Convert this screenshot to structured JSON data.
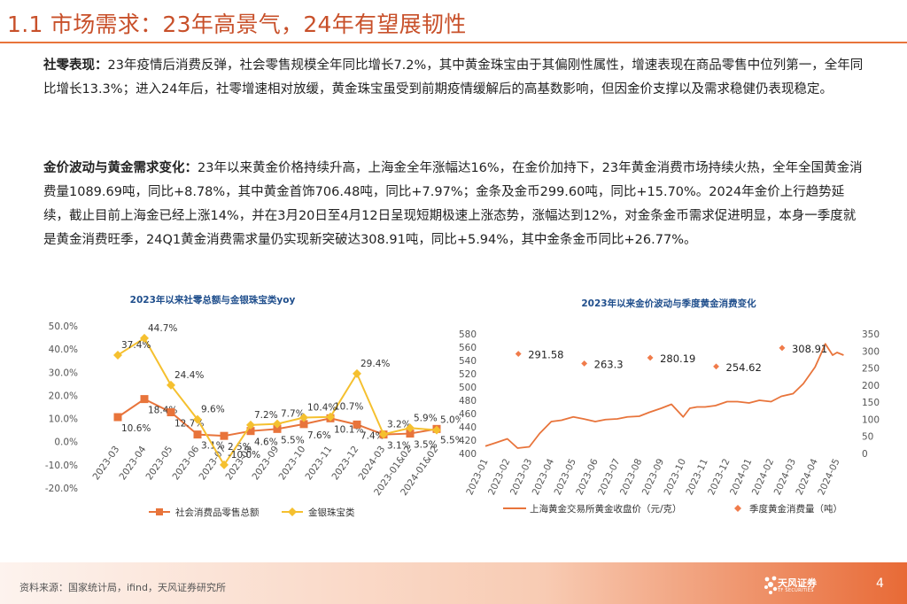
{
  "title": "1.1 市场需求：23年高景气，24年有望展韧性",
  "paragraphs": [
    {
      "label": "社零表现：",
      "text": "23年疫情后消费反弹，社会零售规模全年同比增长7.2%，其中黄金珠宝由于其偏刚性属性，增速表现在商品零售中位列第一，全年同比增长13.3%；进入24年后，社零增速相对放缓，黄金珠宝虽受到前期疫情缓解后的高基数影响，但因金价支撑以及需求稳健仍表现稳定。"
    },
    {
      "label": "金价波动与黄金需求变化：",
      "text": "23年以来黄金价格持续升高，上海金全年涨幅达16%，在金价加持下，23年黄金消费市场持续火热，全年全国黄金消费量1089.69吨，同比+8.78%，其中黄金首饰706.48吨，同比+7.97%；金条及金币299.60吨，同比+15.70%。2024年金价上行趋势延续，截止目前上海金已经上涨14%，并在3月20日至4月12日呈现短期极速上涨态势，涨幅达到12%，对金条金币需求促进明显，本身一季度就是黄金消费旺季，24Q1黄金消费需求量仍实现新突破达308.91吨，同比+5.94%，其中金条金币同比+26.77%。"
    }
  ],
  "chart_data": [
    {
      "type": "line",
      "title": "2023年以来社零总额与金银珠宝类yoy",
      "categories": [
        "2023-03",
        "2023-04",
        "2023-05",
        "2023-06",
        "2023-07",
        "2023-08",
        "2023-09",
        "2023-10",
        "2023-11",
        "2023-12",
        "2024-03",
        "2023-01&02",
        "2024-01&02"
      ],
      "series": [
        {
          "name": "社会消费品零售总额",
          "color": "#e8743b",
          "marker": "square",
          "values": [
            10.6,
            18.4,
            12.7,
            3.1,
            2.5,
            4.6,
            5.5,
            7.6,
            10.1,
            7.4,
            3.1,
            3.5,
            5.5
          ]
        },
        {
          "name": "金银珠宝类",
          "color": "#f5c02f",
          "marker": "diamond",
          "values": [
            37.4,
            44.7,
            24.4,
            9.6,
            -10.0,
            7.2,
            7.7,
            10.4,
            10.7,
            29.4,
            3.2,
            5.9,
            5.0
          ]
        }
      ],
      "labels": {
        "社会消费品零售总额": [
          "10.6%",
          "18.4%",
          "12.7%",
          "3.1%",
          "2.5%",
          "4.6%",
          "5.5%",
          "7.6%",
          "10.1%",
          "7.4%",
          "3.1%",
          "3.5%",
          "5.5%"
        ],
        "金银珠宝类": [
          "37.4%",
          "44.7%",
          "24.4%",
          "9.6%",
          "-10.0%",
          "7.2%",
          "7.7%",
          "10.4%",
          "10.7%",
          "29.4%",
          "3.2%",
          "5.9%",
          "5.0%"
        ]
      },
      "ylim": [
        -20,
        50
      ],
      "yticks": [
        "50.0%",
        "40.0%",
        "30.0%",
        "20.0%",
        "10.0%",
        "0.0%",
        "-10.0%",
        "-20.0%"
      ],
      "legend_position": "bottom"
    },
    {
      "type": "line",
      "title": "2023年以来金价波动与季度黄金消费变化",
      "x_ticks": [
        "2023-01",
        "2023-02",
        "2023-03",
        "2023-04",
        "2023-05",
        "2023-06",
        "2023-07",
        "2023-08",
        "2023-09",
        "2023-10",
        "2023-11",
        "2023-12",
        "2024-01",
        "2024-02",
        "2024-03",
        "2024-04",
        "2024-05"
      ],
      "y_left_ticks": [
        "580",
        "560",
        "540",
        "520",
        "500",
        "480",
        "460",
        "440",
        "420",
        "400"
      ],
      "y_left_lim": [
        400,
        580
      ],
      "y_right_ticks": [
        "350",
        "300",
        "250",
        "200",
        "150",
        "100",
        "50",
        "0"
      ],
      "y_right_lim": [
        0,
        350
      ],
      "series": [
        {
          "name": "上海黄金交易所黄金收盘价（元/克）",
          "color": "#e8743b",
          "axis": "left",
          "points": [
            [
              "2023-01",
              411
            ],
            [
              "2023-01-15",
              416
            ],
            [
              "2023-02",
              422
            ],
            [
              "2023-02-15",
              408
            ],
            [
              "2023-03",
              410
            ],
            [
              "2023-03-15",
              430
            ],
            [
              "2023-04",
              448
            ],
            [
              "2023-04-15",
              450
            ],
            [
              "2023-05",
              455
            ],
            [
              "2023-05-15",
              452
            ],
            [
              "2023-06",
              448
            ],
            [
              "2023-06-15",
              451
            ],
            [
              "2023-07",
              452
            ],
            [
              "2023-07-15",
              455
            ],
            [
              "2023-08",
              456
            ],
            [
              "2023-08-15",
              462
            ],
            [
              "2023-09",
              468
            ],
            [
              "2023-09-15",
              474
            ],
            [
              "2023-10",
              455
            ],
            [
              "2023-10-10",
              468
            ],
            [
              "2023-10-20",
              470
            ],
            [
              "2023-11",
              470
            ],
            [
              "2023-11-15",
              472
            ],
            [
              "2023-12",
              478
            ],
            [
              "2023-12-15",
              478
            ],
            [
              "2024-01",
              476
            ],
            [
              "2024-01-15",
              480
            ],
            [
              "2024-02",
              478
            ],
            [
              "2024-02-15",
              486
            ],
            [
              "2024-03",
              490
            ],
            [
              "2024-03-15",
              505
            ],
            [
              "2024-04",
              530
            ],
            [
              "2024-04-10",
              552
            ],
            [
              "2024-04-15",
              565
            ],
            [
              "2024-04-25",
              548
            ],
            [
              "2024-05",
              552
            ],
            [
              "2024-05-10",
              548
            ]
          ]
        },
        {
          "name": "季度黄金消费量（吨）",
          "color": "#f07b4a",
          "axis": "right",
          "marker": "diamond",
          "points": [
            [
              "2023-Q1",
              291.58
            ],
            [
              "2023-Q2",
              263.3
            ],
            [
              "2023-Q3",
              280.19
            ],
            [
              "2023-Q4",
              254.62
            ],
            [
              "2024-Q1",
              308.91
            ]
          ],
          "labels": [
            "291.58",
            "263.3",
            "280.19",
            "254.62",
            "308.91"
          ]
        }
      ],
      "legend_position": "bottom"
    }
  ],
  "footer": {
    "source": "资料来源：国家统计局，ifind，天风证券研究所",
    "logo_name": "天风证券",
    "logo_sub": "TF SECURITIES",
    "page": "4"
  }
}
